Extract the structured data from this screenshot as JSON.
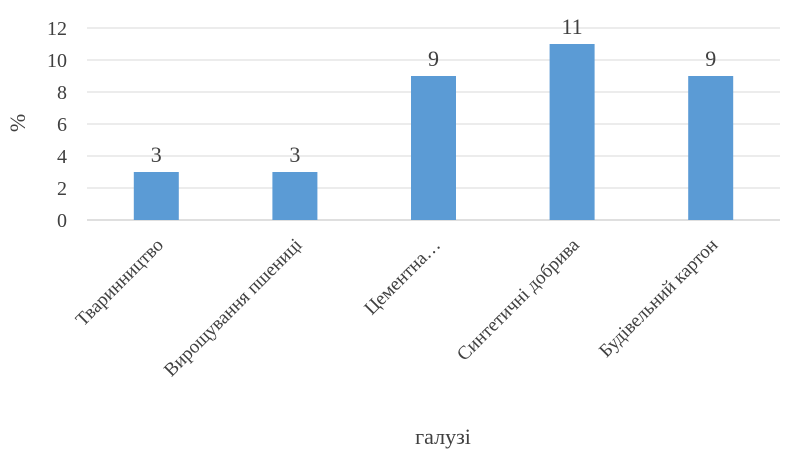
{
  "chart_data": {
    "type": "bar",
    "categories": [
      "Тваринництво",
      "Вирощування пшениці",
      "Цементна…",
      "Синтетичні добрива",
      "Будівельний картон"
    ],
    "values": [
      3,
      3,
      9,
      11,
      9
    ],
    "data_labels": [
      "3",
      "3",
      "9",
      "11",
      "9"
    ],
    "title": "",
    "xlabel": "галузі",
    "ylabel": "%",
    "ylim": [
      0,
      12
    ],
    "yticks": [
      "0",
      "2",
      "4",
      "6",
      "8",
      "10",
      "12"
    ],
    "grid": true,
    "legend": "none",
    "bar_color": "#5b9bd5"
  }
}
